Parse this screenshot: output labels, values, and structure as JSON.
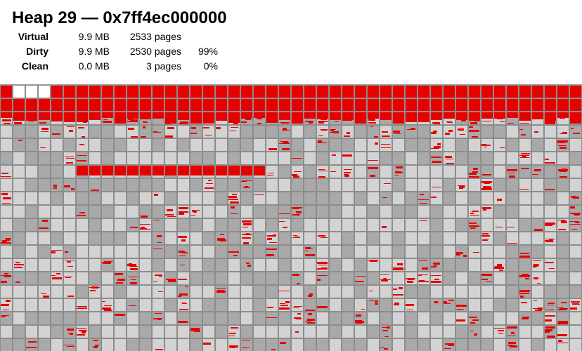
{
  "heap": {
    "title": "Heap 29 — 0x7ff4ec000000"
  },
  "stats": [
    {
      "label": "Virtual",
      "size": "9.9 MB",
      "pages": "2533 pages",
      "percent": ""
    },
    {
      "label": "Dirty",
      "size": "9.9 MB",
      "pages": "2530 pages",
      "percent": "99%"
    },
    {
      "label": "Clean",
      "size": "0.0 MB",
      "pages": "3 pages",
      "percent": "0%"
    }
  ],
  "colors": {
    "dirty_alloc": "#e60000",
    "dirty_page_light": "#d3d3d3",
    "dirty_page_dark": "#a9a9a9",
    "clean_page": "#ffffff",
    "page_border": "#8c8c8c"
  }
}
